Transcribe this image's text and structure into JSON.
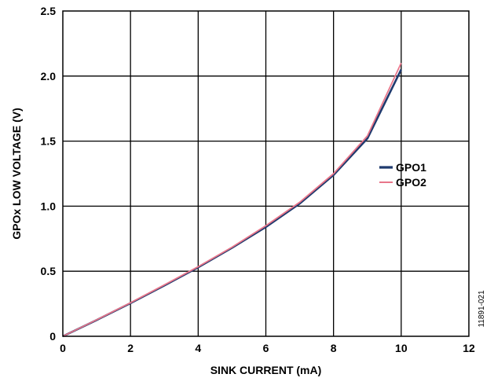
{
  "chart_data": {
    "type": "line",
    "xlabel": "SINK CURRENT (mA)",
    "ylabel": "GPOx LOW VOLTAGE (V)",
    "xlim": [
      0,
      12
    ],
    "ylim": [
      0,
      2.5
    ],
    "x_ticks": [
      0,
      2,
      4,
      6,
      8,
      10,
      12
    ],
    "x_tick_labels": [
      "0",
      "2",
      "4",
      "6",
      "8",
      "10",
      "12"
    ],
    "y_ticks": [
      0,
      0.5,
      1.0,
      1.5,
      2.0,
      2.5
    ],
    "y_tick_labels": [
      "0",
      "0.5",
      "1.0",
      "1.5",
      "2.0",
      "2.5"
    ],
    "grid": true,
    "legend_position": "right",
    "series": [
      {
        "name": "GPO1",
        "color": "#1f3a6e",
        "x": [
          0,
          1,
          2,
          3,
          4,
          5,
          6,
          7,
          8,
          9,
          10
        ],
        "y": [
          0,
          0.125,
          0.255,
          0.39,
          0.53,
          0.68,
          0.84,
          1.02,
          1.24,
          1.52,
          2.05
        ]
      },
      {
        "name": "GPO2",
        "color": "#e8768a",
        "x": [
          0,
          1,
          2,
          3,
          4,
          5,
          6,
          7,
          8,
          9,
          10
        ],
        "y": [
          0,
          0.127,
          0.258,
          0.395,
          0.535,
          0.685,
          0.85,
          1.03,
          1.25,
          1.54,
          2.1
        ]
      }
    ],
    "figure_id": "11891-021"
  }
}
